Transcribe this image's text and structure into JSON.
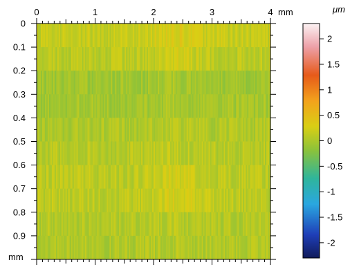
{
  "chart_data": {
    "type": "heatmap",
    "title": "",
    "x_axis": {
      "label": "",
      "unit": "mm",
      "range": [
        0,
        4
      ],
      "ticks": [
        "0",
        "1",
        "2",
        "3",
        "4"
      ]
    },
    "y_axis": {
      "label": "",
      "unit": "mm",
      "range": [
        0,
        1
      ],
      "ticks": [
        "0",
        "0.1",
        "0.2",
        "0.3",
        "0.4",
        "0.5",
        "0.6",
        "0.7",
        "0.8",
        "0.9"
      ]
    },
    "colorbar": {
      "unit": "μm",
      "range": [
        -2.3,
        2.3
      ],
      "ticks": [
        "2",
        "1.5",
        "1",
        "0.5",
        "0",
        "-0.5",
        "-1",
        "-1.5",
        "-2"
      ],
      "colors": [
        "#101a5a",
        "#1f3fb8",
        "#2aa7e0",
        "#2fb59b",
        "#8cc23a",
        "#d9cf14",
        "#f3a21c",
        "#e65a1a",
        "#eda0a8",
        "#fbf2f3"
      ]
    },
    "bands": [
      {
        "y_range": [
          0.0,
          0.1
        ],
        "height_um": 0.12
      },
      {
        "y_range": [
          0.1,
          0.2
        ],
        "height_um": 0.05
      },
      {
        "y_range": [
          0.2,
          0.3
        ],
        "height_um": -0.12
      },
      {
        "y_range": [
          0.3,
          0.4
        ],
        "height_um": -0.1
      },
      {
        "y_range": [
          0.4,
          0.5
        ],
        "height_um": -0.03
      },
      {
        "y_range": [
          0.5,
          0.6
        ],
        "height_um": 0.03
      },
      {
        "y_range": [
          0.6,
          0.7
        ],
        "height_um": 0.06
      },
      {
        "y_range": [
          0.7,
          0.8
        ],
        "height_um": 0.07
      },
      {
        "y_range": [
          0.8,
          0.9
        ],
        "height_um": 0.0
      },
      {
        "y_range": [
          0.9,
          1.0
        ],
        "height_um": -0.02
      }
    ],
    "grid": false,
    "legend": "right"
  }
}
